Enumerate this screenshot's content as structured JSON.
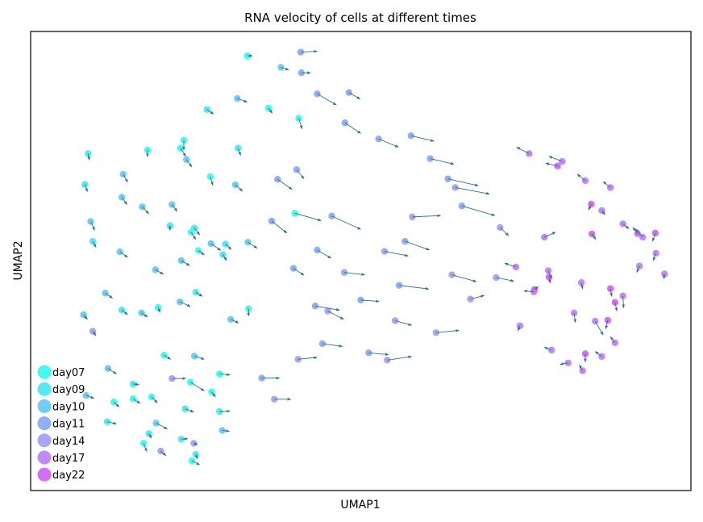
{
  "chart_data": {
    "type": "scatter",
    "title": "RNA velocity of cells at different times",
    "xlabel": "UMAP1",
    "ylabel": "UMAP2",
    "axis_ticks": "none",
    "grid": false,
    "legend_position": "bottom-left",
    "arrow_color": "#2f6f8f",
    "xlim": [
      0,
      100
    ],
    "ylim": [
      0,
      100
    ],
    "series": [
      {
        "name": "day07",
        "color": "#3cfff0",
        "points": [
          {
            "x": 32.8,
            "y": 94.7,
            "dx": 0.8,
            "dy": 0.0
          },
          {
            "x": 23.2,
            "y": 76.3,
            "dx": 0.0,
            "dy": -2.1
          },
          {
            "x": 27.2,
            "y": 68.4,
            "dx": 0.4,
            "dy": -1.9
          },
          {
            "x": 36.0,
            "y": 83.3,
            "dx": 0.6,
            "dy": -1.1
          },
          {
            "x": 40.6,
            "y": 81.1,
            "dx": 0.5,
            "dy": -2.3
          },
          {
            "x": 22.7,
            "y": 74.6,
            "dx": 0.8,
            "dy": -1.8
          },
          {
            "x": 40.0,
            "y": 60.4,
            "dx": 4.0,
            "dy": -1.6
          },
          {
            "x": 33.0,
            "y": 39.6,
            "dx": 0.0,
            "dy": -1.6
          },
          {
            "x": 17.7,
            "y": 74.2,
            "dx": 0.0,
            "dy": -1.5
          },
          {
            "x": 24.3,
            "y": 56.3,
            "dx": 0.7,
            "dy": -1.6
          },
          {
            "x": 25.4,
            "y": 52.3,
            "dx": 0.9,
            "dy": -1.0
          },
          {
            "x": 19.3,
            "y": 39.9,
            "dx": 0.3,
            "dy": -1.1
          },
          {
            "x": 20.2,
            "y": 29.5,
            "dx": 1.0,
            "dy": -0.9
          },
          {
            "x": 12.6,
            "y": 19.3,
            "dx": 0.8,
            "dy": -1.1
          },
          {
            "x": 15.5,
            "y": 20.0,
            "dx": 1.1,
            "dy": -1.0
          },
          {
            "x": 24.2,
            "y": 23.6,
            "dx": 2.1,
            "dy": -1.9
          },
          {
            "x": 28.6,
            "y": 25.4,
            "dx": 1.6,
            "dy": -0.2
          },
          {
            "x": 27.4,
            "y": 21.5,
            "dx": 0.6,
            "dy": -1.1
          },
          {
            "x": 18.3,
            "y": 20.4,
            "dx": 0.9,
            "dy": -1.3
          },
          {
            "x": 17.1,
            "y": 10.3,
            "dx": 0.5,
            "dy": -1.8
          },
          {
            "x": 24.4,
            "y": 6.5,
            "dx": 1.2,
            "dy": -0.9
          }
        ]
      },
      {
        "name": "day09",
        "color": "#52eaf4",
        "points": [
          {
            "x": 26.7,
            "y": 83.0,
            "dx": 1.0,
            "dy": -1.0
          },
          {
            "x": 31.4,
            "y": 74.6,
            "dx": 0.4,
            "dy": -1.6
          },
          {
            "x": 24.8,
            "y": 57.2,
            "dx": 0.8,
            "dy": -1.5
          },
          {
            "x": 29.5,
            "y": 53.7,
            "dx": 0.9,
            "dy": -1.2
          },
          {
            "x": 8.7,
            "y": 73.4,
            "dx": 0.2,
            "dy": -1.4
          },
          {
            "x": 8.2,
            "y": 66.7,
            "dx": 0.4,
            "dy": -1.6
          },
          {
            "x": 21.1,
            "y": 57.7,
            "dx": 0.0,
            "dy": -1.0
          },
          {
            "x": 29.1,
            "y": 51.4,
            "dx": 0.6,
            "dy": -1.3
          },
          {
            "x": 9.4,
            "y": 54.3,
            "dx": 0.5,
            "dy": -1.3
          },
          {
            "x": 25.0,
            "y": 43.2,
            "dx": 1.0,
            "dy": -0.9
          },
          {
            "x": 13.8,
            "y": 39.3,
            "dx": 0.9,
            "dy": -1.0
          },
          {
            "x": 15.5,
            "y": 23.2,
            "dx": 0.9,
            "dy": -0.1
          },
          {
            "x": 11.6,
            "y": 15.0,
            "dx": 1.4,
            "dy": -0.5
          },
          {
            "x": 23.4,
            "y": 17.8,
            "dx": 1.3,
            "dy": -0.7
          },
          {
            "x": 28.6,
            "y": 17.2,
            "dx": 1.6,
            "dy": 0.1
          },
          {
            "x": 17.9,
            "y": 12.4,
            "dx": 0.4,
            "dy": -1.0
          },
          {
            "x": 22.8,
            "y": 11.2,
            "dx": 1.0,
            "dy": 0.1
          },
          {
            "x": 25.0,
            "y": 7.9,
            "dx": 0.3,
            "dy": -1.0
          }
        ]
      },
      {
        "name": "day10",
        "color": "#70cdf6",
        "points": [
          {
            "x": 37.9,
            "y": 92.2,
            "dx": 1.2,
            "dy": -0.6
          },
          {
            "x": 31.3,
            "y": 85.4,
            "dx": 1.5,
            "dy": -0.8
          },
          {
            "x": 23.6,
            "y": 72.1,
            "dx": 0.8,
            "dy": -1.6
          },
          {
            "x": 31.0,
            "y": 66.6,
            "dx": 1.1,
            "dy": -1.4
          },
          {
            "x": 14.0,
            "y": 68.9,
            "dx": 0.7,
            "dy": -1.7
          },
          {
            "x": 13.8,
            "y": 63.9,
            "dx": 0.8,
            "dy": -1.6
          },
          {
            "x": 16.9,
            "y": 61.8,
            "dx": 1.0,
            "dy": -1.5
          },
          {
            "x": 21.4,
            "y": 62.3,
            "dx": 0.8,
            "dy": -1.5
          },
          {
            "x": 27.3,
            "y": 53.8,
            "dx": 1.5,
            "dy": -1.5
          },
          {
            "x": 32.9,
            "y": 54.1,
            "dx": 1.4,
            "dy": -1.3
          },
          {
            "x": 9.1,
            "y": 58.6,
            "dx": 0.6,
            "dy": -1.9
          },
          {
            "x": 13.5,
            "y": 52.0,
            "dx": 1.2,
            "dy": -1.2
          },
          {
            "x": 18.9,
            "y": 48.1,
            "dx": 1.2,
            "dy": -1.0
          },
          {
            "x": 22.8,
            "y": 50.1,
            "dx": 1.3,
            "dy": -1.1
          },
          {
            "x": 11.3,
            "y": 43.0,
            "dx": 1.1,
            "dy": -1.1
          },
          {
            "x": 16.8,
            "y": 38.7,
            "dx": 0.9,
            "dy": -0.9
          },
          {
            "x": 22.6,
            "y": 41.1,
            "dx": 1.6,
            "dy": -1.0
          },
          {
            "x": 30.3,
            "y": 37.3,
            "dx": 1.2,
            "dy": -0.8
          },
          {
            "x": 24.8,
            "y": 29.3,
            "dx": 1.5,
            "dy": -0.7
          },
          {
            "x": 11.7,
            "y": 26.6,
            "dx": 1.3,
            "dy": -1.2
          },
          {
            "x": 8.0,
            "y": 38.3,
            "dx": 0.6,
            "dy": -1.0
          },
          {
            "x": 19.0,
            "y": 14.7,
            "dx": 1.7,
            "dy": -1.3
          },
          {
            "x": 8.4,
            "y": 20.7,
            "dx": 1.2,
            "dy": -0.6
          },
          {
            "x": 29.0,
            "y": 13.1,
            "dx": 1.1,
            "dy": -0.2
          }
        ]
      },
      {
        "name": "day11",
        "color": "#8fb0f8",
        "points": [
          {
            "x": 40.9,
            "y": 95.5,
            "dx": 2.5,
            "dy": 0.2
          },
          {
            "x": 41.0,
            "y": 91.0,
            "dx": 1.4,
            "dy": 0.0
          },
          {
            "x": 43.4,
            "y": 86.4,
            "dx": 2.9,
            "dy": -2.4
          },
          {
            "x": 48.2,
            "y": 86.7,
            "dx": 1.7,
            "dy": -1.4
          },
          {
            "x": 47.6,
            "y": 80.1,
            "dx": 2.4,
            "dy": -2.3
          },
          {
            "x": 52.7,
            "y": 76.6,
            "dx": 3.0,
            "dy": -1.8
          },
          {
            "x": 57.6,
            "y": 77.3,
            "dx": 3.5,
            "dy": -1.2
          },
          {
            "x": 60.5,
            "y": 72.3,
            "dx": 3.6,
            "dy": -1.2
          },
          {
            "x": 63.2,
            "y": 67.9,
            "dx": 4.6,
            "dy": -1.5
          },
          {
            "x": 65.3,
            "y": 62.0,
            "dx": 5.0,
            "dy": -2.1
          },
          {
            "x": 56.7,
            "y": 54.3,
            "dx": 3.7,
            "dy": -1.9
          },
          {
            "x": 45.6,
            "y": 59.8,
            "dx": 4.4,
            "dy": -2.9
          },
          {
            "x": 36.5,
            "y": 58.7,
            "dx": 2.3,
            "dy": -2.6
          },
          {
            "x": 43.4,
            "y": 52.4,
            "dx": 2.1,
            "dy": -1.8
          },
          {
            "x": 47.5,
            "y": 47.5,
            "dx": 3.1,
            "dy": -0.5
          },
          {
            "x": 55.8,
            "y": 44.7,
            "dx": 4.5,
            "dy": -0.8
          },
          {
            "x": 43.1,
            "y": 40.2,
            "dx": 3.7,
            "dy": -0.9
          },
          {
            "x": 50.0,
            "y": 41.5,
            "dx": 2.8,
            "dy": -0.3
          },
          {
            "x": 40.3,
            "y": 69.9,
            "dx": 1.1,
            "dy": -2.0
          },
          {
            "x": 37.4,
            "y": 67.8,
            "dx": 2.2,
            "dy": -2.2
          },
          {
            "x": 39.8,
            "y": 48.4,
            "dx": 1.6,
            "dy": -1.5
          },
          {
            "x": 44.2,
            "y": 32.0,
            "dx": 3.0,
            "dy": -0.6
          },
          {
            "x": 35.0,
            "y": 24.5,
            "dx": 2.7,
            "dy": 0.0
          },
          {
            "x": 51.2,
            "y": 30.0,
            "dx": 3.0,
            "dy": -0.4
          }
        ]
      },
      {
        "name": "day14",
        "color": "#a9a6fa",
        "points": [
          {
            "x": 57.8,
            "y": 59.6,
            "dx": 4.3,
            "dy": 0.3
          },
          {
            "x": 64.3,
            "y": 66.0,
            "dx": 5.2,
            "dy": -1.4
          },
          {
            "x": 71.1,
            "y": 57.3,
            "dx": 1.3,
            "dy": -1.8
          },
          {
            "x": 70.5,
            "y": 46.4,
            "dx": 2.7,
            "dy": -0.8
          },
          {
            "x": 66.6,
            "y": 41.7,
            "dx": 2.1,
            "dy": 0.8
          },
          {
            "x": 55.2,
            "y": 37.0,
            "dx": 2.5,
            "dy": -1.0
          },
          {
            "x": 45.0,
            "y": 39.1,
            "dx": 2.4,
            "dy": -1.8
          },
          {
            "x": 40.5,
            "y": 28.6,
            "dx": 2.9,
            "dy": 0.4
          },
          {
            "x": 61.4,
            "y": 34.4,
            "dx": 3.5,
            "dy": 0.5
          },
          {
            "x": 54.0,
            "y": 28.4,
            "dx": 3.7,
            "dy": 0.8
          },
          {
            "x": 53.6,
            "y": 52.1,
            "dx": 3.6,
            "dy": -1.0
          },
          {
            "x": 63.8,
            "y": 47.0,
            "dx": 3.7,
            "dy": -1.5
          },
          {
            "x": 9.4,
            "y": 34.7,
            "dx": 0.5,
            "dy": -1.0
          },
          {
            "x": 21.4,
            "y": 24.4,
            "dx": 2.1,
            "dy": 0.0
          },
          {
            "x": 19.7,
            "y": 8.6,
            "dx": 0.8,
            "dy": -1.0
          },
          {
            "x": 24.7,
            "y": 10.3,
            "dx": 0.6,
            "dy": -0.3
          },
          {
            "x": 36.9,
            "y": 19.9,
            "dx": 2.5,
            "dy": 0.0
          }
        ]
      },
      {
        "name": "day17",
        "color": "#c08afc",
        "points": [
          {
            "x": 75.5,
            "y": 73.4,
            "dx": -1.9,
            "dy": 1.4
          },
          {
            "x": 80.5,
            "y": 71.7,
            "dx": -2.0,
            "dy": 1.1
          },
          {
            "x": 84.0,
            "y": 67.5,
            "dx": -1.2,
            "dy": 1.4
          },
          {
            "x": 87.8,
            "y": 66.0,
            "dx": -1.1,
            "dy": 1.3
          },
          {
            "x": 86.5,
            "y": 61.0,
            "dx": 0.5,
            "dy": -0.9
          },
          {
            "x": 89.7,
            "y": 58.1,
            "dx": 0.9,
            "dy": -1.1
          },
          {
            "x": 92.7,
            "y": 55.2,
            "dx": -1.1,
            "dy": 1.8
          },
          {
            "x": 94.7,
            "y": 51.7,
            "dx": -0.4,
            "dy": -1.6
          },
          {
            "x": 92.2,
            "y": 48.9,
            "dx": -0.4,
            "dy": -1.4
          },
          {
            "x": 96.0,
            "y": 47.2,
            "dx": -0.1,
            "dy": -1.1
          },
          {
            "x": 89.7,
            "y": 42.4,
            "dx": 0.1,
            "dy": -2.6
          },
          {
            "x": 85.5,
            "y": 36.9,
            "dx": 1.2,
            "dy": -3.0
          },
          {
            "x": 82.3,
            "y": 38.7,
            "dx": 0.2,
            "dy": -2.1
          },
          {
            "x": 77.8,
            "y": 55.2,
            "dx": 1.7,
            "dy": 1.1
          },
          {
            "x": 73.5,
            "y": 48.7,
            "dx": -1.7,
            "dy": 0.8
          },
          {
            "x": 76.2,
            "y": 43.3,
            "dx": -1.5,
            "dy": 0.2
          },
          {
            "x": 74.1,
            "y": 35.9,
            "dx": -0.3,
            "dy": -1.1
          },
          {
            "x": 78.9,
            "y": 30.6,
            "dx": -1.1,
            "dy": 0.6
          },
          {
            "x": 81.4,
            "y": 27.8,
            "dx": -1.2,
            "dy": -0.3
          },
          {
            "x": 83.6,
            "y": 26.1,
            "dx": -0.5,
            "dy": 1.3
          },
          {
            "x": 86.5,
            "y": 29.2,
            "dx": -1.0,
            "dy": 1.1
          },
          {
            "x": 88.5,
            "y": 32.2,
            "dx": -0.7,
            "dy": 1.3
          },
          {
            "x": 83.4,
            "y": 45.3,
            "dx": 0.2,
            "dy": -1.4
          },
          {
            "x": 78.4,
            "y": 47.9,
            "dx": 0.5,
            "dy": -1.7
          }
        ]
      },
      {
        "name": "day22",
        "color": "#d46dfe",
        "points": [
          {
            "x": 79.8,
            "y": 70.7,
            "dx": -1.8,
            "dy": 0.6
          },
          {
            "x": 84.9,
            "y": 62.4,
            "dx": -0.4,
            "dy": -1.3
          },
          {
            "x": 91.9,
            "y": 56.0,
            "dx": -0.7,
            "dy": 1.3
          },
          {
            "x": 87.8,
            "y": 44.0,
            "dx": 0.2,
            "dy": -1.7
          },
          {
            "x": 84.0,
            "y": 29.8,
            "dx": 0.0,
            "dy": -1.8
          },
          {
            "x": 78.5,
            "y": 46.5,
            "dx": 0.2,
            "dy": -1.3
          },
          {
            "x": 85.0,
            "y": 55.9,
            "dx": 0.6,
            "dy": -1.2
          },
          {
            "x": 88.5,
            "y": 41.0,
            "dx": 0.3,
            "dy": -1.9
          },
          {
            "x": 94.6,
            "y": 56.1,
            "dx": -0.4,
            "dy": -1.8
          },
          {
            "x": 87.4,
            "y": 37.1,
            "dx": -0.3,
            "dy": -1.9
          },
          {
            "x": 76.3,
            "y": 43.8,
            "dx": 0.6,
            "dy": 0.6
          }
        ]
      }
    ]
  }
}
